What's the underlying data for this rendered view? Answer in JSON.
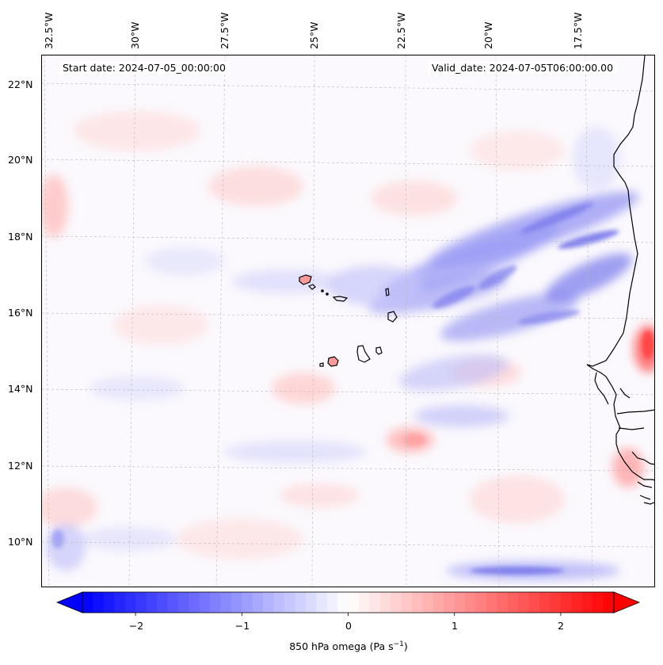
{
  "map": {
    "start_date": "Start date: 2024-07-05_00:00:00",
    "valid_date": "Valid_date: 2024-07-05T06:00:00.00",
    "longitude_labels": [
      "32.5°W",
      "30°W",
      "27.5°W",
      "25°W",
      "22.5°W",
      "20°W",
      "17.5°W"
    ],
    "latitude_labels": [
      "22°N",
      "20°N",
      "18°N",
      "16°N",
      "14°N",
      "12°N",
      "10°N"
    ],
    "extent": {
      "lon_min": -33.0,
      "lon_max": -16.1,
      "lat_min": 8.9,
      "lat_max": 22.8
    },
    "field": "850 hPa omega",
    "units": "Pa s⁻¹"
  },
  "colorbar": {
    "ticks": [
      "−2",
      "−1",
      "0",
      "1",
      "2"
    ],
    "tick_values": [
      -2,
      -1,
      0,
      1,
      2
    ],
    "range": [
      -2.5,
      2.5
    ],
    "extend": "both",
    "label_text": "850 hPa omega (Pa s",
    "label_sup": "−1",
    "label_close": ")",
    "colors": {
      "negative": "#0000ff",
      "zero": "#ffffff",
      "positive": "#ff0000"
    }
  }
}
